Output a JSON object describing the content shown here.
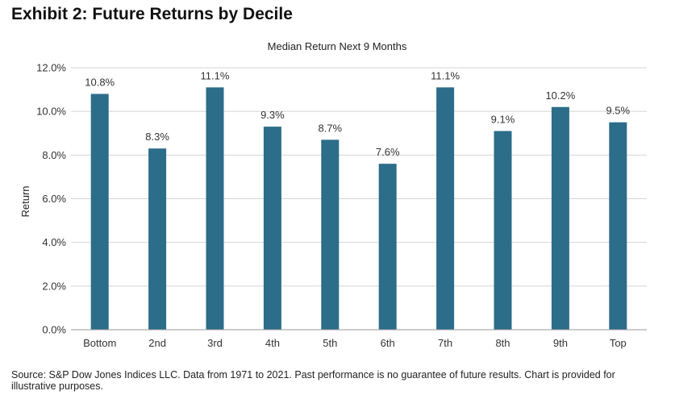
{
  "exhibit_title": "Exhibit 2: Future Returns by Decile",
  "source_note": "Source: S&P Dow Jones Indices LLC. Data from 1971 to 2021. Past performance is no guarantee of future results. Chart is provided for illustrative purposes.",
  "colors": {
    "bar": "#2c6d89",
    "grid": "#d4d4d4",
    "axis": "#9a9a9a",
    "text": "#333333"
  },
  "chart_data": {
    "type": "bar",
    "title": "Median Return Next 9 Months",
    "xlabel": "",
    "ylabel": "Return",
    "categories": [
      "Bottom",
      "2nd",
      "3rd",
      "4th",
      "5th",
      "6th",
      "7th",
      "8th",
      "9th",
      "Top"
    ],
    "values": [
      10.8,
      8.3,
      11.1,
      9.3,
      8.7,
      7.6,
      11.1,
      9.1,
      10.2,
      9.5
    ],
    "data_labels": [
      "10.8%",
      "8.3%",
      "11.1%",
      "9.3%",
      "8.7%",
      "7.6%",
      "11.1%",
      "9.1%",
      "10.2%",
      "9.5%"
    ],
    "ylim": [
      0,
      12
    ],
    "yticks": [
      0,
      2,
      4,
      6,
      8,
      10,
      12
    ],
    "ytick_labels": [
      "0.0%",
      "2.0%",
      "4.0%",
      "6.0%",
      "8.0%",
      "10.0%",
      "12.0%"
    ],
    "grid": true,
    "legend": "none"
  }
}
